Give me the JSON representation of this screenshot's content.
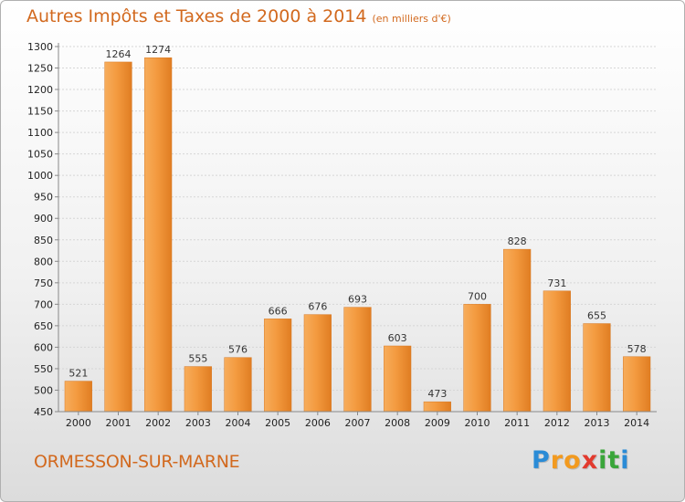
{
  "header": {
    "title": "Autres Impôts et Taxes de 2000 à 2014",
    "subtitle": "(en milliers d'€)"
  },
  "footer": {
    "city": "ORMESSON-SUR-MARNE",
    "logo_letters": [
      {
        "ch": "P",
        "color": "#2a8bd6"
      },
      {
        "ch": "r",
        "color": "#f29a1f"
      },
      {
        "ch": "o",
        "color": "#f29a1f"
      },
      {
        "ch": "x",
        "color": "#e23a2e"
      },
      {
        "ch": "i",
        "color": "#3aa53a"
      },
      {
        "ch": "t",
        "color": "#3aa53a"
      },
      {
        "ch": "i",
        "color": "#2a8bd6"
      }
    ]
  },
  "chart_data": {
    "type": "bar",
    "title": "Autres Impôts et Taxes de 2000 à 2014",
    "subtitle": "(en milliers d'€)",
    "categories": [
      "2000",
      "2001",
      "2002",
      "2003",
      "2004",
      "2005",
      "2006",
      "2007",
      "2008",
      "2009",
      "2010",
      "2011",
      "2012",
      "2013",
      "2014"
    ],
    "values": [
      521,
      1264,
      1274,
      555,
      576,
      666,
      676,
      693,
      603,
      473,
      700,
      828,
      731,
      655,
      578
    ],
    "ylim": [
      450,
      1300
    ],
    "ytick_step": 50,
    "grid": true,
    "bar_color": "#f0953a",
    "xlabel": "",
    "ylabel": ""
  }
}
